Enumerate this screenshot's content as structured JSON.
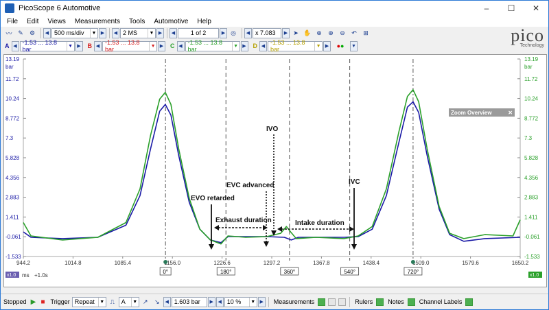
{
  "window": {
    "title": "PicoScope 6 Automotive",
    "minimize": "–",
    "maximize": "☐",
    "close": "✕"
  },
  "menu": [
    "File",
    "Edit",
    "Views",
    "Measurements",
    "Tools",
    "Automotive",
    "Help"
  ],
  "toolbar": {
    "timebase": "500 ms/div",
    "samples": "2 MS",
    "buffer": "1 of 2",
    "zoom": "x 7.083"
  },
  "channels": [
    {
      "letter": "A",
      "range": "-1.53 ... 13.8 bar",
      "color": "#1a1aa6"
    },
    {
      "letter": "B",
      "range": "-1.53 ... 13.8 bar",
      "color": "#d62020"
    },
    {
      "letter": "C",
      "range": "-1.53 ... 13.8 bar",
      "color": "#2aa02a"
    },
    {
      "letter": "D",
      "range": "-1.53 ... 13.8 bar",
      "color": "#b5a000"
    }
  ],
  "logo": {
    "text": "pico",
    "sub": "Technology"
  },
  "zoom_overview": {
    "label": "Zoom Overview"
  },
  "plot": {
    "y_unit_left": "bar",
    "y_unit_right": "bar",
    "y_ticks_left": [
      "13.19",
      "11.72",
      "10.24",
      "8.772",
      "7.3",
      "5.828",
      "4.356",
      "2.883",
      "1.411",
      "-0.061",
      "-1.533"
    ],
    "y_ticks_right": [
      "13.19",
      "11.72",
      "10.24",
      "8.772",
      "7.3",
      "5.828",
      "4.356",
      "2.883",
      "1.411",
      "-0.061",
      "-1.533"
    ],
    "x_ticks": [
      "944.2",
      "1014.8",
      "1085.4",
      "1156.0",
      "1226.6",
      "1297.2",
      "1367.8",
      "1438.4",
      "1509.0",
      "1579.6",
      "1650.2"
    ],
    "x_unit": "ms",
    "x_offset": "+1.0s",
    "x_scale_badge": "x1.0",
    "x_scale_badge_right": "x1.0",
    "rulers": [
      {
        "label": "0°",
        "style": "dash-dot",
        "x_ms": 1146.2
      },
      {
        "label": "180°",
        "style": "dash",
        "x_ms": 1232.1
      },
      {
        "label": "360°",
        "style": "dash",
        "x_ms": 1322.4
      },
      {
        "label": "540°",
        "style": "dash",
        "x_ms": 1408.0
      },
      {
        "label": "720°",
        "style": "dash-dot",
        "x_ms": 1498.0
      }
    ],
    "annotations": {
      "evo": "EVO retarded",
      "evc": "EVC advanced",
      "ivo": "IVO",
      "ivc": "IVC",
      "exhaust": "Exhaust duration",
      "intake": "Intake duration"
    },
    "x_range": [
      944.2,
      1650.2
    ],
    "y_range": [
      -1.533,
      13.19
    ]
  },
  "chart_data": {
    "type": "line",
    "x_unit": "ms",
    "y_unit": "bar",
    "xlim": [
      944.2,
      1650.2
    ],
    "ylim": [
      -1.533,
      13.19
    ],
    "series": [
      {
        "color": "#1a1aa6",
        "points": [
          [
            944.2,
            0.3
          ],
          [
            955,
            -0.1
          ],
          [
            1000,
            -0.2
          ],
          [
            1050,
            -0.1
          ],
          [
            1090,
            0.8
          ],
          [
            1110,
            3.0
          ],
          [
            1125,
            6.5
          ],
          [
            1138,
            9.3
          ],
          [
            1146,
            9.8
          ],
          [
            1154,
            9.0
          ],
          [
            1165,
            6.0
          ],
          [
            1180,
            2.5
          ],
          [
            1195,
            0.5
          ],
          [
            1210,
            -0.3
          ],
          [
            1225,
            -0.5
          ],
          [
            1235,
            -0.05
          ],
          [
            1260,
            -0.05
          ],
          [
            1290,
            -0.05
          ],
          [
            1315,
            -0.1
          ],
          [
            1325,
            -0.3
          ],
          [
            1335,
            -0.1
          ],
          [
            1360,
            -0.1
          ],
          [
            1400,
            -0.1
          ],
          [
            1420,
            -0.05
          ],
          [
            1440,
            0.5
          ],
          [
            1460,
            3.0
          ],
          [
            1478,
            7.0
          ],
          [
            1490,
            9.6
          ],
          [
            1498,
            10.0
          ],
          [
            1506,
            9.2
          ],
          [
            1518,
            6.0
          ],
          [
            1535,
            2.0
          ],
          [
            1550,
            0.1
          ],
          [
            1570,
            -0.4
          ],
          [
            1600,
            -0.2
          ],
          [
            1650.2,
            -0.1
          ]
        ]
      },
      {
        "color": "#2aa02a",
        "points": [
          [
            944.2,
            1.0
          ],
          [
            955,
            0.0
          ],
          [
            1000,
            -0.3
          ],
          [
            1050,
            -0.1
          ],
          [
            1090,
            1.0
          ],
          [
            1110,
            3.5
          ],
          [
            1125,
            7.5
          ],
          [
            1138,
            10.2
          ],
          [
            1146,
            10.7
          ],
          [
            1154,
            9.8
          ],
          [
            1165,
            6.5
          ],
          [
            1180,
            2.8
          ],
          [
            1195,
            0.5
          ],
          [
            1210,
            -0.3
          ],
          [
            1225,
            -0.6
          ],
          [
            1235,
            0.0
          ],
          [
            1260,
            -0.1
          ],
          [
            1290,
            -0.05
          ],
          [
            1310,
            0.2
          ],
          [
            1318,
            0.7
          ],
          [
            1324,
            0.3
          ],
          [
            1332,
            -0.2
          ],
          [
            1360,
            -0.1
          ],
          [
            1400,
            -0.2
          ],
          [
            1420,
            0.0
          ],
          [
            1440,
            0.7
          ],
          [
            1460,
            3.5
          ],
          [
            1478,
            7.8
          ],
          [
            1490,
            10.4
          ],
          [
            1498,
            10.9
          ],
          [
            1506,
            10.0
          ],
          [
            1518,
            6.5
          ],
          [
            1535,
            2.2
          ],
          [
            1550,
            0.2
          ],
          [
            1570,
            -0.2
          ],
          [
            1600,
            0.1
          ],
          [
            1640,
            0.0
          ],
          [
            1650.2,
            1.2
          ]
        ]
      }
    ]
  },
  "status": {
    "stopped": "Stopped",
    "trigger": "Trigger",
    "trigger_mode": "Repeat",
    "trigger_channel": "A",
    "threshold": "1.603 bar",
    "pretrigger": "10 %",
    "measurements": "Measurements",
    "rulers": "Rulers",
    "notes": "Notes",
    "channel_labels": "Channel Labels"
  }
}
